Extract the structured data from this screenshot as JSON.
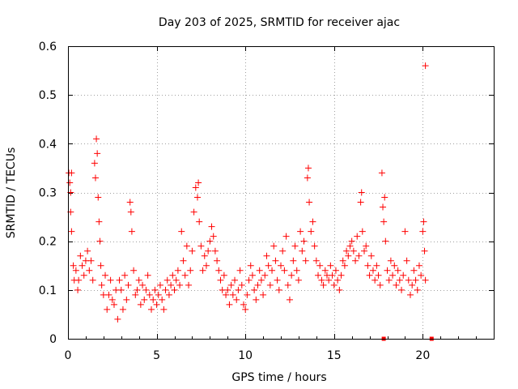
{
  "chart_data": {
    "type": "scatter",
    "title": "Day 203 of 2025, SRMTID for receiver ajac",
    "xlabel": "GPS time / hours",
    "ylabel": "SRMTID / TECUs",
    "xlim": [
      0,
      24
    ],
    "ylim": [
      0,
      0.6
    ],
    "x_ticks": [
      0,
      5,
      10,
      15,
      20
    ],
    "y_ticks": [
      0,
      0.1,
      0.2,
      0.3,
      0.4,
      0.5,
      0.6
    ],
    "x_tick_labels": [
      "0",
      "5",
      "10",
      "15",
      "20"
    ],
    "y_tick_labels": [
      "0",
      "0.1",
      "0.2",
      "0.3",
      "0.4",
      "0.5",
      "0.6"
    ],
    "grid": true,
    "marker": "+",
    "series": [
      {
        "name": "SRMTID",
        "color": "#ff0000",
        "points": [
          [
            0.05,
            0.34
          ],
          [
            0.1,
            0.32
          ],
          [
            0.15,
            0.3
          ],
          [
            0.15,
            0.26
          ],
          [
            0.2,
            0.34
          ],
          [
            0.2,
            0.22
          ],
          [
            0.3,
            0.15
          ],
          [
            0.35,
            0.12
          ],
          [
            0.45,
            0.14
          ],
          [
            0.55,
            0.1
          ],
          [
            0.6,
            0.12
          ],
          [
            0.7,
            0.17
          ],
          [
            0.8,
            0.15
          ],
          [
            0.9,
            0.13
          ],
          [
            1.0,
            0.16
          ],
          [
            1.1,
            0.18
          ],
          [
            1.2,
            0.14
          ],
          [
            1.3,
            0.16
          ],
          [
            1.4,
            0.12
          ],
          [
            1.5,
            0.36
          ],
          [
            1.55,
            0.33
          ],
          [
            1.6,
            0.41
          ],
          [
            1.65,
            0.38
          ],
          [
            1.7,
            0.29
          ],
          [
            1.75,
            0.24
          ],
          [
            1.8,
            0.2
          ],
          [
            1.85,
            0.15
          ],
          [
            1.9,
            0.11
          ],
          [
            2.0,
            0.09
          ],
          [
            2.1,
            0.13
          ],
          [
            2.2,
            0.06
          ],
          [
            2.3,
            0.09
          ],
          [
            2.4,
            0.12
          ],
          [
            2.5,
            0.08
          ],
          [
            2.6,
            0.07
          ],
          [
            2.7,
            0.1
          ],
          [
            2.8,
            0.04
          ],
          [
            2.9,
            0.12
          ],
          [
            3.0,
            0.1
          ],
          [
            3.1,
            0.06
          ],
          [
            3.2,
            0.13
          ],
          [
            3.3,
            0.08
          ],
          [
            3.4,
            0.11
          ],
          [
            3.5,
            0.28
          ],
          [
            3.55,
            0.26
          ],
          [
            3.6,
            0.22
          ],
          [
            3.7,
            0.14
          ],
          [
            3.8,
            0.09
          ],
          [
            3.9,
            0.1
          ],
          [
            4.0,
            0.12
          ],
          [
            4.1,
            0.07
          ],
          [
            4.2,
            0.11
          ],
          [
            4.3,
            0.08
          ],
          [
            4.4,
            0.1
          ],
          [
            4.5,
            0.13
          ],
          [
            4.6,
            0.09
          ],
          [
            4.7,
            0.06
          ],
          [
            4.8,
            0.08
          ],
          [
            4.9,
            0.1
          ],
          [
            5.0,
            0.07
          ],
          [
            5.1,
            0.09
          ],
          [
            5.2,
            0.11
          ],
          [
            5.3,
            0.08
          ],
          [
            5.4,
            0.06
          ],
          [
            5.5,
            0.1
          ],
          [
            5.6,
            0.12
          ],
          [
            5.7,
            0.09
          ],
          [
            5.8,
            0.11
          ],
          [
            5.9,
            0.13
          ],
          [
            6.0,
            0.1
          ],
          [
            6.1,
            0.12
          ],
          [
            6.2,
            0.14
          ],
          [
            6.3,
            0.11
          ],
          [
            6.4,
            0.22
          ],
          [
            6.5,
            0.16
          ],
          [
            6.6,
            0.13
          ],
          [
            6.7,
            0.19
          ],
          [
            6.8,
            0.11
          ],
          [
            6.9,
            0.14
          ],
          [
            7.0,
            0.18
          ],
          [
            7.1,
            0.26
          ],
          [
            7.2,
            0.31
          ],
          [
            7.3,
            0.29
          ],
          [
            7.35,
            0.32
          ],
          [
            7.4,
            0.24
          ],
          [
            7.5,
            0.19
          ],
          [
            7.6,
            0.14
          ],
          [
            7.7,
            0.17
          ],
          [
            7.8,
            0.15
          ],
          [
            7.9,
            0.18
          ],
          [
            8.0,
            0.2
          ],
          [
            8.1,
            0.23
          ],
          [
            8.2,
            0.21
          ],
          [
            8.3,
            0.18
          ],
          [
            8.4,
            0.16
          ],
          [
            8.5,
            0.14
          ],
          [
            8.6,
            0.12
          ],
          [
            8.7,
            0.1
          ],
          [
            8.8,
            0.13
          ],
          [
            8.9,
            0.09
          ],
          [
            9.0,
            0.1
          ],
          [
            9.1,
            0.07
          ],
          [
            9.2,
            0.11
          ],
          [
            9.3,
            0.09
          ],
          [
            9.4,
            0.12
          ],
          [
            9.5,
            0.08
          ],
          [
            9.6,
            0.1
          ],
          [
            9.7,
            0.14
          ],
          [
            9.8,
            0.11
          ],
          [
            9.9,
            0.07
          ],
          [
            10.0,
            0.06
          ],
          [
            10.1,
            0.09
          ],
          [
            10.2,
            0.12
          ],
          [
            10.3,
            0.15
          ],
          [
            10.4,
            0.13
          ],
          [
            10.5,
            0.1
          ],
          [
            10.6,
            0.08
          ],
          [
            10.7,
            0.11
          ],
          [
            10.8,
            0.14
          ],
          [
            10.9,
            0.12
          ],
          [
            11.0,
            0.09
          ],
          [
            11.1,
            0.13
          ],
          [
            11.2,
            0.17
          ],
          [
            11.3,
            0.15
          ],
          [
            11.4,
            0.11
          ],
          [
            11.5,
            0.14
          ],
          [
            11.6,
            0.19
          ],
          [
            11.7,
            0.16
          ],
          [
            11.8,
            0.12
          ],
          [
            11.9,
            0.1
          ],
          [
            12.0,
            0.15
          ],
          [
            12.1,
            0.18
          ],
          [
            12.2,
            0.14
          ],
          [
            12.3,
            0.21
          ],
          [
            12.4,
            0.11
          ],
          [
            12.5,
            0.08
          ],
          [
            12.6,
            0.13
          ],
          [
            12.7,
            0.16
          ],
          [
            12.8,
            0.19
          ],
          [
            12.9,
            0.14
          ],
          [
            13.0,
            0.12
          ],
          [
            13.1,
            0.22
          ],
          [
            13.2,
            0.18
          ],
          [
            13.3,
            0.2
          ],
          [
            13.4,
            0.16
          ],
          [
            13.5,
            0.33
          ],
          [
            13.55,
            0.35
          ],
          [
            13.6,
            0.28
          ],
          [
            13.7,
            0.22
          ],
          [
            13.8,
            0.24
          ],
          [
            13.9,
            0.19
          ],
          [
            14.0,
            0.16
          ],
          [
            14.1,
            0.13
          ],
          [
            14.2,
            0.15
          ],
          [
            14.3,
            0.12
          ],
          [
            14.4,
            0.11
          ],
          [
            14.5,
            0.14
          ],
          [
            14.6,
            0.13
          ],
          [
            14.7,
            0.12
          ],
          [
            14.8,
            0.15
          ],
          [
            14.9,
            0.13
          ],
          [
            15.0,
            0.11
          ],
          [
            15.1,
            0.14
          ],
          [
            15.2,
            0.12
          ],
          [
            15.3,
            0.1
          ],
          [
            15.4,
            0.13
          ],
          [
            15.5,
            0.16
          ],
          [
            15.6,
            0.15
          ],
          [
            15.7,
            0.18
          ],
          [
            15.8,
            0.17
          ],
          [
            15.9,
            0.19
          ],
          [
            16.0,
            0.2
          ],
          [
            16.1,
            0.18
          ],
          [
            16.2,
            0.16
          ],
          [
            16.3,
            0.21
          ],
          [
            16.4,
            0.17
          ],
          [
            16.5,
            0.28
          ],
          [
            16.55,
            0.3
          ],
          [
            16.6,
            0.22
          ],
          [
            16.7,
            0.18
          ],
          [
            16.8,
            0.19
          ],
          [
            16.9,
            0.15
          ],
          [
            17.0,
            0.13
          ],
          [
            17.1,
            0.17
          ],
          [
            17.2,
            0.14
          ],
          [
            17.3,
            0.12
          ],
          [
            17.4,
            0.15
          ],
          [
            17.5,
            0.13
          ],
          [
            17.6,
            0.11
          ],
          [
            17.7,
            0.34
          ],
          [
            17.75,
            0.27
          ],
          [
            17.8,
            0.24
          ],
          [
            17.85,
            0.29
          ],
          [
            17.9,
            0.2
          ],
          [
            18.0,
            0.14
          ],
          [
            18.1,
            0.12
          ],
          [
            18.2,
            0.16
          ],
          [
            18.3,
            0.13
          ],
          [
            18.4,
            0.15
          ],
          [
            18.5,
            0.11
          ],
          [
            18.6,
            0.14
          ],
          [
            18.7,
            0.12
          ],
          [
            18.8,
            0.1
          ],
          [
            18.9,
            0.13
          ],
          [
            19.0,
            0.22
          ],
          [
            19.1,
            0.16
          ],
          [
            19.2,
            0.12
          ],
          [
            19.3,
            0.09
          ],
          [
            19.4,
            0.11
          ],
          [
            19.5,
            0.14
          ],
          [
            19.6,
            0.12
          ],
          [
            19.7,
            0.1
          ],
          [
            19.8,
            0.15
          ],
          [
            19.9,
            0.13
          ],
          [
            20.0,
            0.22
          ],
          [
            20.05,
            0.24
          ],
          [
            20.1,
            0.18
          ],
          [
            20.15,
            0.12
          ],
          [
            20.15,
            0.56
          ]
        ]
      }
    ],
    "axis_markers": [
      17.8,
      20.5
    ]
  }
}
